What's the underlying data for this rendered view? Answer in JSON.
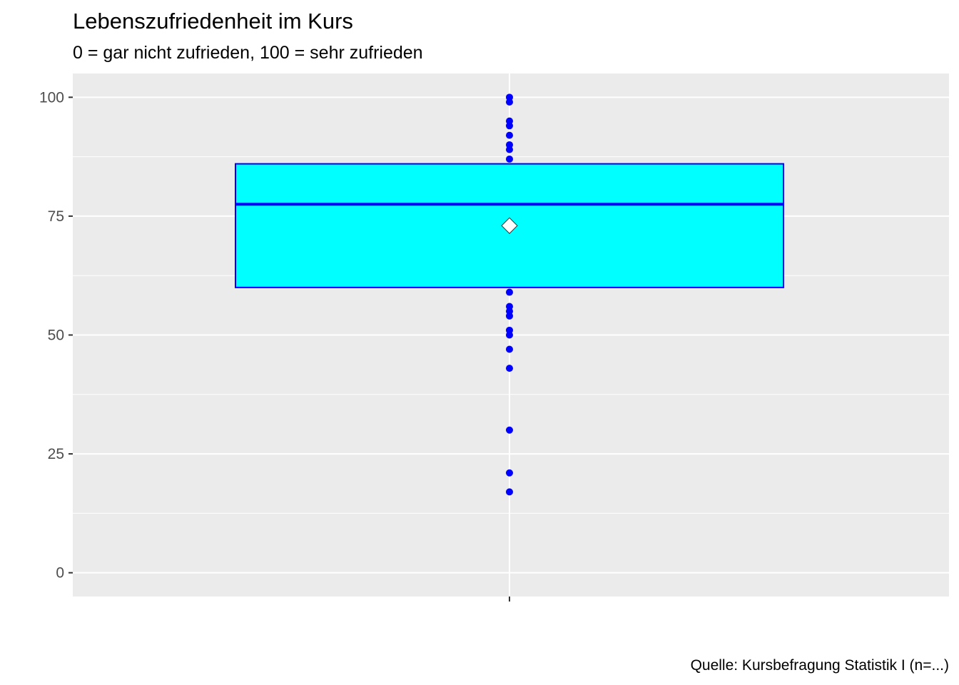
{
  "chart_data": {
    "type": "boxplot",
    "title": "Lebenszufriedenheit im Kurs",
    "subtitle": "0 = gar nicht zufrieden, 100 = sehr zufrieden",
    "caption": "Quelle: Kursbefragung Statistik I (n=...)",
    "xlabel": "",
    "ylabel": "",
    "ylim": [
      -5,
      105
    ],
    "yticks": [
      0,
      25,
      50,
      75,
      100
    ],
    "ytick_labels": [
      "0",
      "25",
      "50",
      "75",
      "100"
    ],
    "grid": true,
    "box": {
      "q1": 60,
      "median": 77.5,
      "q3": 86,
      "mean": 73
    },
    "points": [
      100,
      99,
      95,
      94,
      92,
      90,
      89,
      87,
      59,
      56,
      55,
      54,
      51,
      50,
      47,
      43,
      30,
      21,
      17
    ],
    "colors": {
      "panel_background": "#ebebeb",
      "grid": "#ffffff",
      "box_fill": "#00ffff",
      "box_outline": "#0000ff",
      "points": "#0000ff",
      "mean_marker": "#ffffff"
    }
  }
}
